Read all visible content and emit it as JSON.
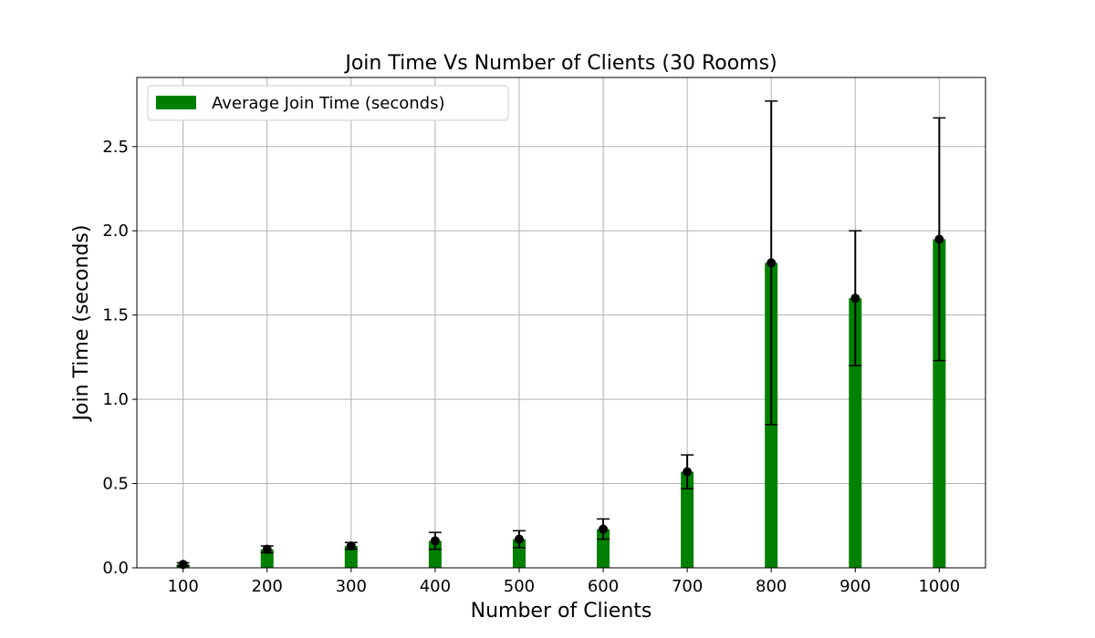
{
  "chart_data": {
    "type": "bar",
    "title": "Join Time Vs Number of Clients (30 Rooms)",
    "xlabel": "Number of Clients",
    "ylabel": "Join Time (seconds)",
    "x": [
      100,
      200,
      300,
      400,
      500,
      600,
      700,
      800,
      900,
      1000
    ],
    "xlim": [
      45,
      1055
    ],
    "ylim": [
      0,
      2.91
    ],
    "yticks": [
      0.0,
      0.5,
      1.0,
      1.5,
      2.0,
      2.5
    ],
    "ytick_labels": [
      "0.0",
      "0.5",
      "1.0",
      "1.5",
      "2.0",
      "2.5"
    ],
    "xtick_labels": [
      "100",
      "200",
      "300",
      "400",
      "500",
      "600",
      "700",
      "800",
      "900",
      "1000"
    ],
    "grid": true,
    "legend_position": "top-left",
    "series": [
      {
        "name": "Average Join Time (seconds)",
        "color": "#008000",
        "values": [
          0.02,
          0.11,
          0.13,
          0.16,
          0.17,
          0.23,
          0.57,
          1.81,
          1.6,
          1.95
        ],
        "error": [
          0.01,
          0.02,
          0.02,
          0.05,
          0.05,
          0.06,
          0.1,
          0.96,
          0.4,
          0.72
        ]
      }
    ]
  }
}
